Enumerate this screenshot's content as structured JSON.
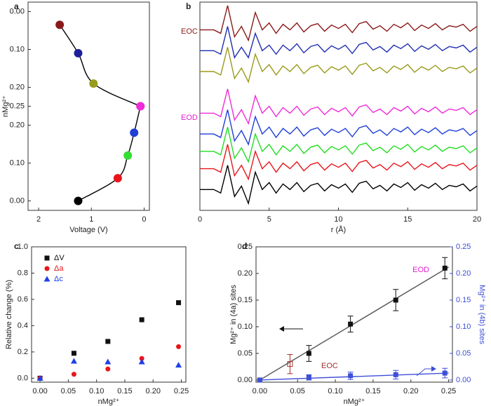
{
  "chart_data": [
    {
      "type": "line",
      "panel_label": "a",
      "xlabel": "Voltage (V)",
      "ylabel": "nMg²⁺",
      "xlim": [
        2.2,
        -0.1
      ],
      "xticks": [
        2,
        1,
        0
      ],
      "ylim": [
        -0.025,
        0.25
      ],
      "yticks": [
        {
          "value": 0,
          "label": "0.00"
        },
        {
          "value": 0.1,
          "label": "0.10"
        },
        {
          "value": 0.2,
          "label": "0.20"
        },
        {
          "value": 0.25,
          "label": "0.25"
        }
      ],
      "y2lim": [
        -0.025,
        0.25
      ],
      "y2ticks": [
        {
          "value": 0,
          "label": "0.00"
        },
        {
          "value": 0.1,
          "label": "0.10"
        },
        {
          "value": 0.2,
          "label": "0.20"
        }
      ],
      "series": [
        {
          "color": "#000000",
          "marker": "circle",
          "x": [
            1.25,
            0.5,
            0.31,
            0.19,
            0.07
          ],
          "values": [
            0,
            0.06,
            0.12,
            0.18,
            0.25
          ],
          "point_colors": [
            "#000000",
            "#e8161b",
            "#33dd33",
            "#1f3fd6",
            "#ee2bd8"
          ]
        },
        {
          "color": "#000000",
          "marker": "circle",
          "axis": "y2",
          "x": [
            0.07,
            0.96,
            1.25,
            1.6
          ],
          "values": [
            0.25,
            0.19,
            0.11,
            0.035
          ],
          "point_colors": [
            "#ee2bd8",
            "#9a9a1e",
            "#1f1f9c",
            "#8a1a1a"
          ]
        }
      ]
    },
    {
      "type": "line",
      "panel_label": "b",
      "xlabel": "r (Å)",
      "xlim": [
        0,
        20
      ],
      "xticks": [
        0,
        5,
        10,
        15,
        20
      ],
      "ylim": [
        0,
        30
      ],
      "annotations": [
        {
          "text": "EOC",
          "color": "#8a1a1a"
        },
        {
          "text": "EOD",
          "color": "#e020d0"
        }
      ],
      "x": [
        0,
        0.5,
        1,
        1.5,
        2,
        2.5,
        3,
        3.5,
        4,
        4.5,
        5,
        5.5,
        6,
        6.5,
        7,
        7.5,
        8,
        8.5,
        9,
        9.5,
        10,
        10.5,
        11,
        11.5,
        12,
        12.5,
        13,
        13.5,
        14,
        14.5,
        15,
        15.5,
        16,
        16.5,
        17,
        17.5,
        18,
        18.5,
        19,
        19.5,
        20
      ],
      "series": [
        {
          "color": "#8a1a1a",
          "values": [
            26,
            26,
            26,
            25.5,
            29.5,
            25,
            26.5,
            24.5,
            28.5,
            26,
            27,
            25.5,
            26.8,
            26,
            27,
            25.7,
            26.6,
            26.9,
            25.8,
            26.7,
            26.2,
            26.8,
            25.6,
            26.9,
            27.2,
            26.1,
            26.6,
            25.8,
            26.8,
            26.3,
            27,
            25.9,
            26.7,
            26.2,
            26.9,
            26,
            26.6,
            26.4,
            26.8,
            25.8,
            26.5
          ]
        },
        {
          "color": "#1f2fb0",
          "values": [
            23,
            23,
            23,
            22.5,
            26.5,
            22,
            23.5,
            22,
            25.5,
            23,
            23.8,
            22.5,
            23.8,
            23,
            24,
            22.7,
            23.6,
            23.9,
            22.8,
            23.7,
            23.2,
            23.8,
            22.6,
            23.9,
            24.2,
            23.1,
            23.6,
            22.8,
            23.8,
            23.3,
            24,
            22.9,
            23.7,
            23.2,
            23.9,
            23,
            23.6,
            23.4,
            23.8,
            22.8,
            23.5
          ]
        },
        {
          "color": "#9a9a1e",
          "values": [
            20,
            20,
            20,
            19.5,
            23.5,
            19,
            20.5,
            18.5,
            22.5,
            20,
            21,
            19.5,
            20.8,
            20,
            21,
            19.7,
            20.6,
            20.9,
            19.8,
            20.7,
            20.2,
            20.8,
            19.6,
            20.9,
            21.2,
            20.1,
            20.6,
            19.8,
            20.8,
            20.3,
            21,
            19.9,
            20.7,
            20.2,
            20.9,
            20,
            20.6,
            20.4,
            20.8,
            19.8,
            20.5
          ]
        },
        {
          "color": "#ee2bd8",
          "values": [
            14,
            14,
            14,
            13.5,
            17.5,
            13,
            14.5,
            12.5,
            16.5,
            14,
            15,
            13.5,
            14.8,
            14,
            15,
            13.7,
            14.6,
            14.9,
            13.8,
            14.7,
            14.2,
            14.8,
            13.6,
            14.9,
            15.2,
            14.1,
            14.6,
            13.8,
            14.8,
            14.3,
            15,
            13.9,
            14.7,
            14.2,
            14.9,
            14,
            14.6,
            14.4,
            14.8,
            13.8,
            14.5
          ]
        },
        {
          "color": "#1f3fd6",
          "values": [
            11,
            11,
            11,
            10.5,
            14.5,
            10,
            11.5,
            9.5,
            13.5,
            11,
            12,
            10.5,
            11.8,
            11,
            12,
            10.7,
            11.6,
            11.9,
            10.8,
            11.7,
            11.2,
            11.8,
            10.6,
            11.9,
            12.2,
            11.1,
            11.6,
            10.8,
            11.8,
            11.3,
            12,
            10.9,
            11.7,
            11.2,
            11.9,
            11,
            11.6,
            11.4,
            11.8,
            10.8,
            11.5
          ]
        },
        {
          "color": "#22dd22",
          "values": [
            8.5,
            8.5,
            8.5,
            8,
            12,
            7.5,
            9,
            7,
            11,
            8.5,
            9.5,
            8,
            9.3,
            8.5,
            9.5,
            8.2,
            9.1,
            9.4,
            8.3,
            9.2,
            8.7,
            9.3,
            8.1,
            9.4,
            9.7,
            8.6,
            9.1,
            8.3,
            9.3,
            8.8,
            9.5,
            8.4,
            9.2,
            8.7,
            9.4,
            8.5,
            9.1,
            8.9,
            9.3,
            8.3,
            9
          ]
        },
        {
          "color": "#e8161b",
          "values": [
            6,
            6,
            6,
            5.5,
            9.5,
            5,
            6.5,
            4.5,
            8.5,
            6,
            7,
            5.5,
            6.8,
            6,
            7,
            5.7,
            6.6,
            6.9,
            5.8,
            6.7,
            6.2,
            6.8,
            5.6,
            6.9,
            7.2,
            6.1,
            6.6,
            5.8,
            6.8,
            6.3,
            7,
            5.9,
            6.7,
            6.2,
            6.9,
            6,
            6.6,
            6.4,
            6.8,
            5.8,
            6.5
          ]
        },
        {
          "color": "#000000",
          "values": [
            3,
            3,
            3,
            2.5,
            6.5,
            2,
            3.5,
            1,
            5.5,
            3,
            4,
            2.5,
            3.8,
            3,
            4,
            2.7,
            3.6,
            3.9,
            2.8,
            3.7,
            3.2,
            3.8,
            2.6,
            3.9,
            4.2,
            3.1,
            3.6,
            2.8,
            3.8,
            3.3,
            4,
            2.9,
            3.7,
            3.2,
            3.9,
            3,
            3.6,
            3.4,
            3.8,
            2.8,
            3.5
          ]
        }
      ]
    },
    {
      "type": "scatter",
      "panel_label": "c",
      "xlabel": "nMg²⁺",
      "ylabel": "Relative change (%)",
      "legend": "upper left",
      "xlim": [
        -0.015,
        0.258
      ],
      "xticks": [
        {
          "value": 0,
          "label": "0.00"
        },
        {
          "value": 0.05,
          "label": "0.05"
        },
        {
          "value": 0.1,
          "label": "0.10"
        },
        {
          "value": 0.15,
          "label": "0.15"
        },
        {
          "value": 0.2,
          "label": "0.20"
        },
        {
          "value": 0.25,
          "label": "0.25"
        }
      ],
      "ylim": [
        -0.03,
        1.0
      ],
      "yticks": [
        {
          "value": 0,
          "label": "0.0"
        },
        {
          "value": 0.2,
          "label": "0.2"
        },
        {
          "value": 0.4,
          "label": "0.4"
        },
        {
          "value": 0.6,
          "label": "0.6"
        },
        {
          "value": 0.8,
          "label": "0.8"
        },
        {
          "value": 1,
          "label": "1.0"
        }
      ],
      "x": [
        0,
        0.06,
        0.12,
        0.18,
        0.245
      ],
      "series": [
        {
          "name": "ΔV",
          "color": "#111111",
          "marker": "square",
          "values": [
            0,
            0.19,
            0.28,
            0.445,
            0.575
          ]
        },
        {
          "name": "Δa",
          "color": "#e8161b",
          "marker": "circle",
          "values": [
            0,
            0.03,
            0.07,
            0.15,
            0.24
          ]
        },
        {
          "name": "Δc",
          "color": "#1f3fe6",
          "marker": "triangle",
          "values": [
            0,
            0.13,
            0.125,
            0.125,
            0.1
          ]
        }
      ]
    },
    {
      "type": "scatter",
      "panel_label": "d",
      "xlabel": "nMg²⁺",
      "ylabel": "Mg²⁺ in (4a) sites",
      "y2label": "Mg²⁺ in (4b) sites",
      "y2color": "#3d4fd6",
      "annotations": [
        {
          "text": "EOD",
          "color": "#e020d0"
        },
        {
          "text": "EOC",
          "color": "#a0302a"
        }
      ],
      "xlim": [
        -0.005,
        0.255
      ],
      "xticks": [
        {
          "value": 0,
          "label": "0.00"
        },
        {
          "value": 0.05,
          "label": "0.05"
        },
        {
          "value": 0.1,
          "label": "0.10"
        },
        {
          "value": 0.15,
          "label": "0.15"
        },
        {
          "value": 0.2,
          "label": "0.20"
        },
        {
          "value": 0.25,
          "label": "0.25"
        }
      ],
      "ylim": [
        -0.004,
        0.25
      ],
      "yticks": [
        {
          "value": 0,
          "label": "0.00"
        },
        {
          "value": 0.05,
          "label": "0.05"
        },
        {
          "value": 0.1,
          "label": "0.10"
        },
        {
          "value": 0.15,
          "label": "0.15"
        },
        {
          "value": 0.2,
          "label": "0.20"
        },
        {
          "value": 0.25,
          "label": "0.25"
        }
      ],
      "y2lim": [
        -0.004,
        0.25
      ],
      "y2ticks": [
        {
          "value": 0,
          "label": "0.00"
        },
        {
          "value": 0.05,
          "label": "0.05"
        },
        {
          "value": 0.1,
          "label": "0.10"
        },
        {
          "value": 0.15,
          "label": "0.15"
        },
        {
          "value": 0.2,
          "label": "0.20"
        },
        {
          "value": 0.25,
          "label": "0.25"
        }
      ],
      "series": [
        {
          "type": "line",
          "color": "#555555",
          "x": [
            0,
            0.25
          ],
          "values": [
            0,
            0.212
          ]
        },
        {
          "type": "line",
          "color": "#3d4fd6",
          "axis": "y2",
          "x": [
            0,
            0.25
          ],
          "values": [
            0,
            0.013
          ]
        },
        {
          "color": "#111111",
          "marker": "square",
          "x": [
            0,
            0.065,
            0.12,
            0.18,
            0.245
          ],
          "values": [
            0,
            0.05,
            0.105,
            0.15,
            0.21
          ],
          "errors": [
            0,
            0.015,
            0.015,
            0.02,
            0.02
          ]
        },
        {
          "color": "#3d4fd6",
          "marker": "square",
          "axis": "y2",
          "x": [
            0,
            0.065,
            0.12,
            0.18,
            0.245
          ],
          "values": [
            0,
            0.005,
            0.008,
            0.01,
            0.013
          ],
          "errors": [
            0,
            0.005,
            0.007,
            0.008,
            0.009
          ]
        },
        {
          "color": "#a0302a",
          "marker": "open-square",
          "x": [
            0.04
          ],
          "values": [
            0.03
          ],
          "errors": [
            0.018
          ]
        }
      ]
    }
  ]
}
